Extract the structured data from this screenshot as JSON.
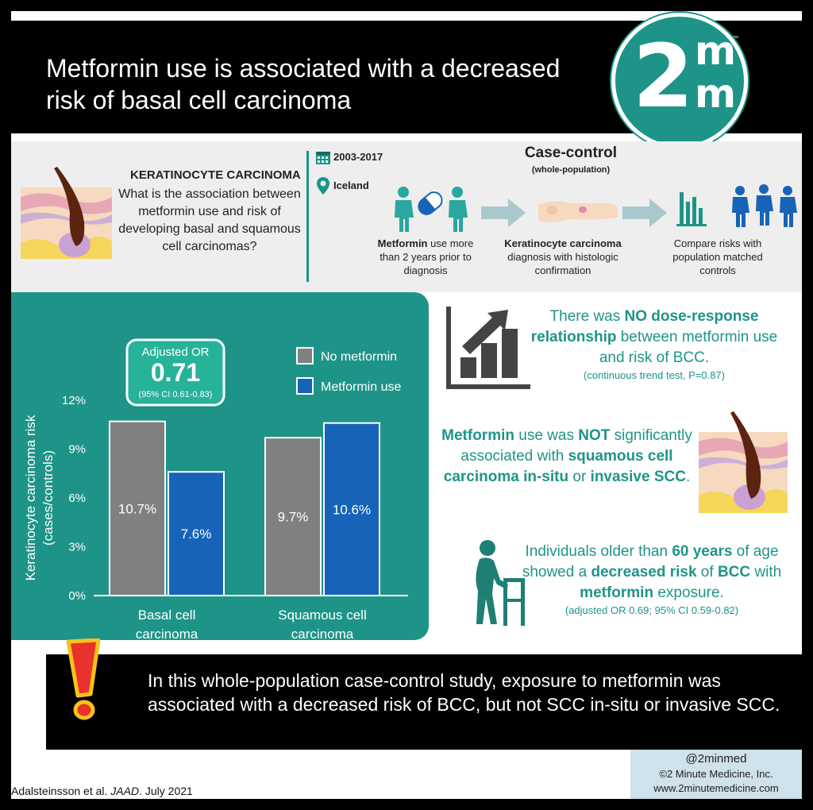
{
  "header": {
    "title_line1": "Metformin use is associated with a decreased",
    "title_line2": "risk of basal cell carcinoma",
    "logo_text": "2",
    "logo_m": "m",
    "logo_tm": "™"
  },
  "study": {
    "topic": "KERATINOCYTE CARCINOMA",
    "question": "What is the association between metformin use and risk of developing basal and squamous cell carcinomas?",
    "years": "2003-2017",
    "location": "Iceland",
    "design": "Case-control",
    "design_sub": "(whole-population)",
    "step1_bold": "Metformin",
    "step1_rest": " use more than 2 years prior to diagnosis",
    "step2_bold": "Keratinocyte carcinoma",
    "step2_rest": " diagnosis with histologic confirmation",
    "step3": "Compare risks with population matched controls"
  },
  "chart_data": {
    "type": "bar",
    "categories": [
      "Basal cell carcinoma",
      "Squamous cell carcinoma"
    ],
    "category_lines": [
      [
        "Basal cell",
        "carcinoma"
      ],
      [
        "Squamous cell",
        "carcinoma"
      ]
    ],
    "series": [
      {
        "name": "No metformin",
        "values": [
          10.7,
          9.7
        ],
        "labels": [
          "10.7%",
          "9.7%"
        ],
        "color": "#808080"
      },
      {
        "name": "Metformin use",
        "values": [
          7.6,
          10.6
        ],
        "labels": [
          "7.6%",
          "10.6%"
        ],
        "color": "#1763b8"
      }
    ],
    "ylabel_line1": "Keratinocyte carcinoma risk",
    "ylabel_line2": "(cases/controls)",
    "yticks": [
      0,
      3,
      6,
      9,
      12
    ],
    "ytick_labels": [
      "0%",
      "3%",
      "6%",
      "9%",
      "12%"
    ],
    "ylim": [
      0,
      12
    ],
    "legend_position": "top-right",
    "annotation": {
      "title": "Adjusted OR",
      "value": "0.71",
      "ci": "(95% CI 0.61-0.83)"
    }
  },
  "findings": {
    "dose": {
      "p1": "There was ",
      "b1": "NO dose-response relationship",
      "p2": " between metformin use and risk of BCC.",
      "small": "(continuous trend test, P=0.87)"
    },
    "scc": {
      "b1": "Metformin",
      "p1": " use was ",
      "b2": "NOT",
      "p2": " significantly associated with ",
      "b3": "squamous cell carcinoma in-situ",
      "p3": " or ",
      "b4": "invasive SCC",
      "p4": "."
    },
    "age": {
      "p1": "Individuals older than ",
      "b1": "60 years",
      "p2": " of age showed a ",
      "b2": "decreased risk",
      "p3": " of ",
      "b3": "BCC",
      "p4": " with ",
      "b4": "metformin",
      "p5": " exposure.",
      "small": "(adjusted OR 0.69; 95% CI 0.59-0.82)"
    }
  },
  "conclusion": "In this whole-population case-control study, exposure to metformin was associated with a decreased risk of BCC, but not SCC in-situ or invasive SCC.",
  "footer": {
    "citation_pre": "Adalsteinsson et al. ",
    "citation_journal": "JAAD",
    "citation_post": ". July 2021",
    "handle": "@2minmed",
    "copyright": "©2 Minute Medicine, Inc.",
    "url": "www.2minutemedicine.com"
  },
  "colors": {
    "teal": "#1e9488",
    "blue": "#1763b8",
    "gray": "#808080",
    "black": "#000000",
    "exclaim_red": "#e8322b",
    "exclaim_yellow": "#f6c31b"
  }
}
